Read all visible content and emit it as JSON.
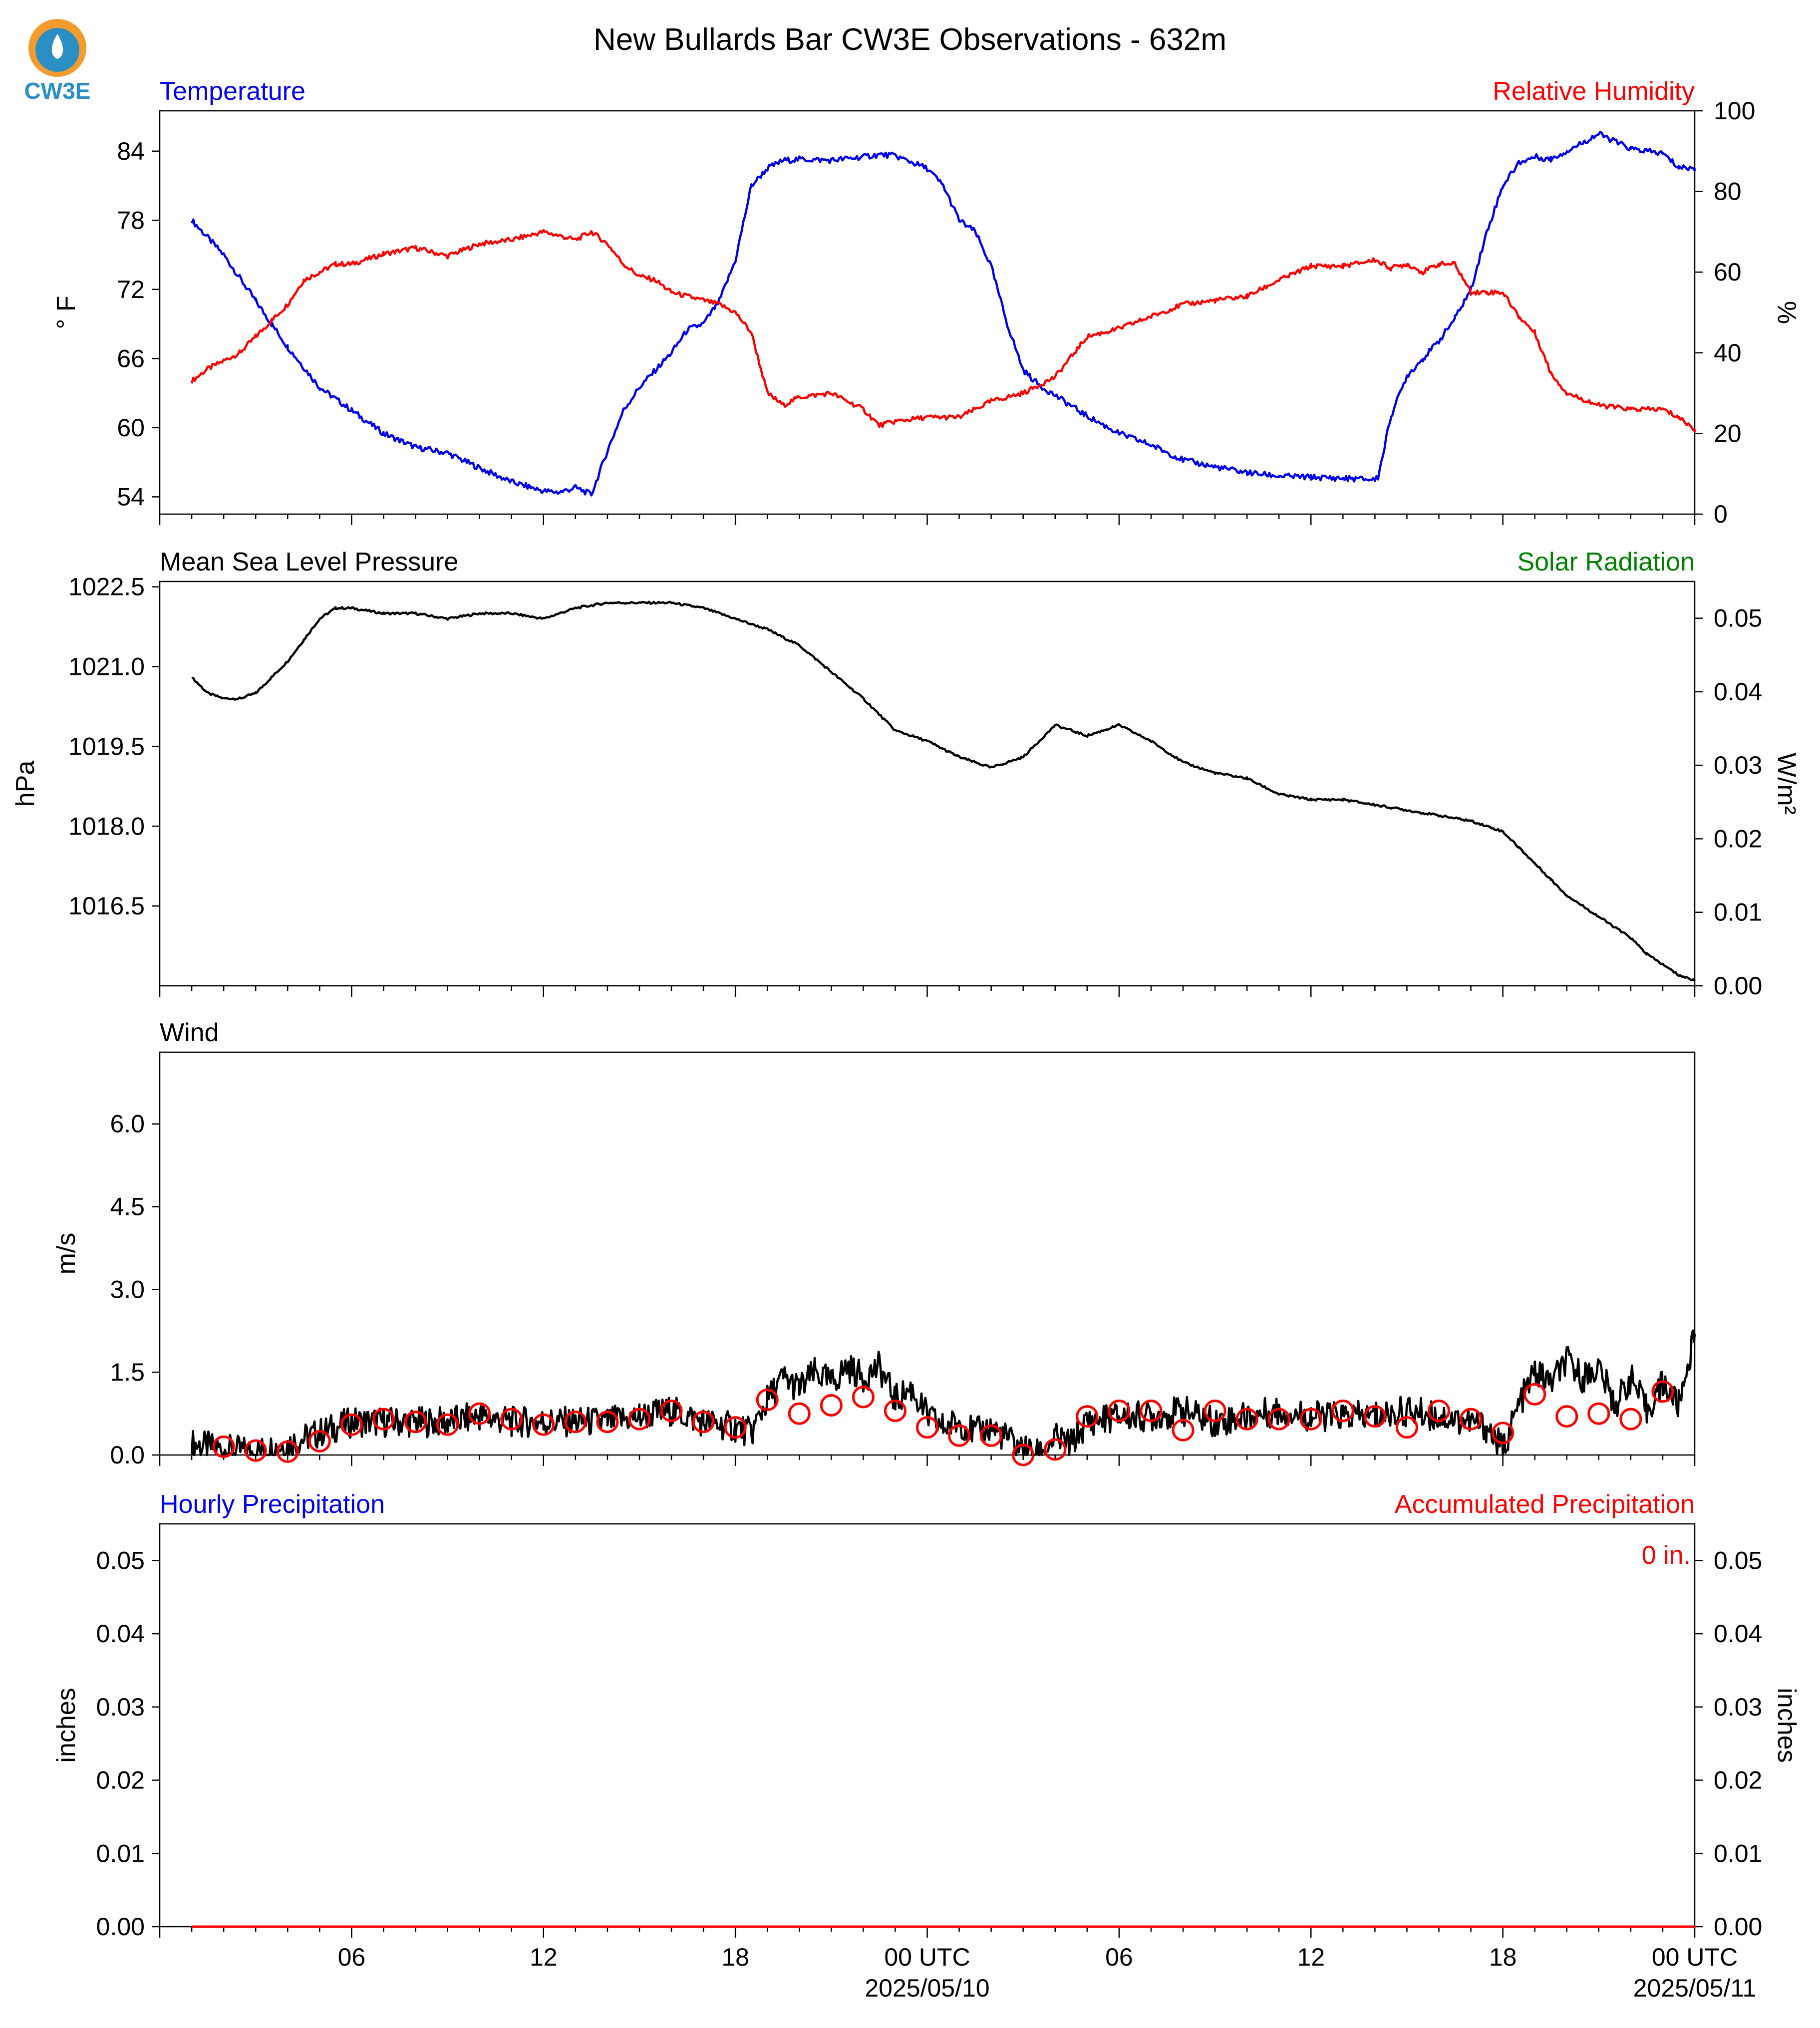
{
  "title": "New Bullards Bar CW3E Observations - 632m",
  "logo": {
    "text": "CW3E",
    "colors": {
      "sun": "#f39c2d",
      "water": "#2b8fc4"
    }
  },
  "colors": {
    "temperature": "#0000ee",
    "humidity": "#ff0000",
    "pressure": "#000000",
    "wind": "#000000",
    "gust": "#ff0000",
    "solar": "#008000",
    "hourly": "#0000ee",
    "accum": "#ff0000",
    "axis": "#000000"
  },
  "time_axis": {
    "x_unit": "hours since 2025-05-09 00 UTC",
    "tick_labels": [
      {
        "h": 6,
        "label": "06"
      },
      {
        "h": 12,
        "label": "12"
      },
      {
        "h": 18,
        "label": "18"
      },
      {
        "h": 24,
        "label": "00 UTC"
      },
      {
        "h": 30,
        "label": "06"
      },
      {
        "h": 36,
        "label": "12"
      },
      {
        "h": 42,
        "label": "18"
      },
      {
        "h": 48,
        "label": "00 UTC"
      }
    ],
    "date_labels": [
      {
        "h": 24,
        "label": "2025/05/10"
      },
      {
        "h": 48,
        "label": "2025/05/11"
      }
    ],
    "range": [
      1,
      48
    ]
  },
  "chart_data": [
    {
      "panel": "temperature_humidity",
      "type": "line",
      "left_title": "Temperature",
      "right_title": "Relative Humidity",
      "ylabel": "° F",
      "ylabel_right": "%",
      "ylim": [
        52.5,
        87.5
      ],
      "ylim_right": [
        0,
        100
      ],
      "yticks": [
        "54",
        "60",
        "66",
        "72",
        "78",
        "84"
      ],
      "yticks_right": [
        "0",
        "20",
        "40",
        "60",
        "80",
        "100"
      ],
      "series": [
        {
          "name": "Temperature",
          "axis": "left",
          "x": [
            1,
            1.5,
            2,
            3,
            3.5,
            4,
            5,
            6,
            7,
            8,
            9,
            10,
            11,
            12,
            12.5,
            13,
            13.5,
            14,
            14.5,
            15,
            16,
            16.5,
            17,
            17.5,
            18,
            18.5,
            19,
            19.5,
            20,
            21,
            22,
            22.5,
            23,
            24,
            24.5,
            25,
            25.5,
            26,
            26.5,
            27,
            27.5,
            28,
            29,
            30,
            31,
            32,
            33,
            34,
            35,
            36,
            37,
            38,
            38.1,
            38.5,
            39,
            39.5,
            40,
            40.5,
            41,
            41.5,
            42,
            42.5,
            43,
            43.5,
            44,
            45,
            46,
            46.5,
            47,
            47.5,
            48
          ],
          "values": [
            78,
            76.5,
            75,
            71,
            69,
            67,
            63.5,
            61.5,
            59.5,
            58.3,
            57.8,
            56.5,
            55.3,
            54.5,
            54.4,
            54.8,
            54.2,
            58,
            61.5,
            63.5,
            66.5,
            68.5,
            69,
            71,
            74.5,
            81,
            82.5,
            83.2,
            83.3,
            83.2,
            83.5,
            83.7,
            83.6,
            82.5,
            81,
            78,
            77,
            74,
            69,
            65,
            63.7,
            62.8,
            61,
            59.5,
            58.5,
            57.2,
            56.6,
            56.1,
            55.8,
            55.7,
            55.6,
            55.5,
            55.7,
            61,
            64.5,
            66,
            67.5,
            69.5,
            72,
            77,
            81,
            83,
            83.5,
            83.3,
            84,
            85.5,
            84.2,
            84,
            83.8,
            82.6,
            82.5
          ]
        },
        {
          "name": "Relative Humidity",
          "axis": "right",
          "x": [
            1,
            1.5,
            2,
            2.5,
            3,
            3.5,
            4,
            4.5,
            5,
            5.5,
            6,
            7,
            8,
            9,
            10,
            11,
            12,
            13,
            13.5,
            14,
            14.5,
            15,
            15.5,
            16,
            17,
            17.5,
            18,
            18.5,
            19,
            19.5,
            20,
            21,
            22,
            22.5,
            23,
            24,
            25,
            26,
            27,
            28,
            29,
            30,
            31,
            32,
            33,
            34,
            35,
            36,
            37,
            38,
            38.5,
            39,
            39.5,
            40,
            40.5,
            41,
            41.5,
            42,
            42.5,
            43,
            43.5,
            44,
            45,
            46,
            47,
            47.5,
            48
          ],
          "values": [
            33,
            36,
            38,
            40,
            44,
            48,
            52,
            58,
            60,
            62,
            62,
            64.5,
            66,
            64,
            67,
            68,
            70,
            68,
            70,
            67,
            62,
            59,
            58,
            55,
            53,
            52,
            50,
            45,
            30,
            27,
            29,
            30,
            26,
            22,
            23,
            24,
            24,
            28,
            30,
            34,
            44,
            46,
            49,
            52,
            53,
            54,
            58,
            61.5,
            61.5,
            63,
            61,
            62,
            60,
            62,
            62,
            55,
            55,
            55,
            49,
            45,
            35,
            30,
            27,
            26,
            26,
            24,
            21
          ]
        }
      ]
    },
    {
      "panel": "pressure_solar",
      "type": "line",
      "left_title": "Mean Sea Level Pressure",
      "right_title": "Solar Radiation",
      "ylabel": "hPa",
      "ylabel_right": "W/m²",
      "ylim": [
        1015.0,
        1022.6
      ],
      "ylim_right": [
        0,
        0.055
      ],
      "yticks": [
        "1016.5",
        "1018.0",
        "1019.5",
        "1021.0",
        "1022.5"
      ],
      "yticks_right": [
        "0.00",
        "0.01",
        "0.02",
        "0.03",
        "0.04",
        "0.05"
      ],
      "series": [
        {
          "name": "Mean Sea Level Pressure",
          "axis": "left",
          "x": [
            1,
            1.5,
            2,
            2.5,
            3,
            3.5,
            4,
            4.5,
            5,
            5.5,
            6,
            7,
            8,
            9,
            10,
            11,
            12,
            13,
            14,
            15,
            16,
            17,
            17.5,
            18,
            18.5,
            19,
            20,
            21,
            22,
            22.5,
            23,
            24,
            25,
            26,
            27,
            27.5,
            28,
            29,
            30,
            31,
            32,
            33,
            34,
            35,
            36,
            37,
            38,
            39,
            40,
            41,
            42,
            42.5,
            43,
            43.5,
            44,
            45,
            46,
            46.5,
            47,
            47.5,
            48
          ],
          "values": [
            1020.8,
            1020.5,
            1020.4,
            1020.4,
            1020.5,
            1020.8,
            1021.1,
            1021.5,
            1021.9,
            1022.1,
            1022.1,
            1022.0,
            1022.0,
            1021.9,
            1022.0,
            1022.0,
            1021.9,
            1022.1,
            1022.2,
            1022.2,
            1022.2,
            1022.1,
            1022.0,
            1021.9,
            1021.8,
            1021.7,
            1021.4,
            1020.9,
            1020.4,
            1020.1,
            1019.8,
            1019.6,
            1019.3,
            1019.1,
            1019.3,
            1019.6,
            1019.9,
            1019.7,
            1019.9,
            1019.6,
            1019.2,
            1019.0,
            1018.9,
            1018.6,
            1018.5,
            1018.5,
            1018.4,
            1018.3,
            1018.2,
            1018.1,
            1017.9,
            1017.6,
            1017.3,
            1017.0,
            1016.7,
            1016.3,
            1015.9,
            1015.6,
            1015.4,
            1015.2,
            1015.1
          ]
        }
      ]
    },
    {
      "panel": "wind",
      "type": "line",
      "left_title": "Wind",
      "ylabel": "m/s",
      "ylim": [
        0,
        7.3
      ],
      "yticks": [
        "0.0",
        "1.5",
        "3.0",
        "4.5",
        "6.0"
      ],
      "series": [
        {
          "name": "Wind speed",
          "axis": "left",
          "x": [
            1,
            2,
            3,
            4,
            5,
            6,
            7,
            8,
            9,
            10,
            11,
            12,
            13,
            14,
            15,
            16,
            17,
            18,
            18.5,
            19,
            19.5,
            20,
            20.5,
            21,
            21.5,
            22,
            22.5,
            23,
            23.5,
            24,
            24.5,
            25,
            25.5,
            26,
            26.5,
            27,
            27.5,
            28,
            28.5,
            29,
            30,
            31,
            32,
            33,
            34,
            35,
            36,
            37,
            38,
            39,
            40,
            41,
            41.5,
            42,
            42.5,
            43,
            43.5,
            44,
            44.5,
            45,
            45.5,
            46,
            46.5,
            47,
            47.5,
            48
          ],
          "values": [
            0.2,
            0.1,
            0.05,
            0.2,
            0.4,
            0.6,
            0.6,
            0.6,
            0.6,
            0.7,
            0.6,
            0.6,
            0.6,
            0.6,
            0.7,
            0.8,
            0.6,
            0.5,
            0.4,
            1.0,
            1.4,
            1.2,
            1.5,
            1.3,
            1.6,
            1.4,
            1.6,
            1.0,
            1.2,
            0.7,
            0.5,
            0.6,
            0.4,
            0.5,
            0.3,
            0.1,
            0.0,
            0.3,
            0.2,
            0.6,
            0.7,
            0.7,
            0.8,
            0.6,
            0.7,
            0.8,
            0.7,
            0.7,
            0.7,
            0.8,
            0.7,
            0.6,
            0.5,
            0.1,
            0.9,
            1.5,
            1.3,
            1.7,
            1.4,
            1.6,
            0.9,
            1.4,
            0.8,
            1.3,
            0.9,
            2.2
          ]
        },
        {
          "name": "Gust",
          "axis": "left",
          "marker": "circle",
          "x": [
            2,
            3,
            4,
            5,
            6,
            7,
            8,
            9,
            10,
            11,
            12,
            13,
            14,
            15,
            16,
            17,
            18,
            19,
            20,
            21,
            22,
            23,
            24,
            25,
            26,
            27,
            28,
            29,
            30,
            31,
            32,
            33,
            34,
            35,
            36,
            37,
            38,
            39,
            40,
            41,
            42,
            43,
            44,
            45,
            46,
            47
          ],
          "values": [
            0.15,
            0.08,
            0.06,
            0.25,
            0.55,
            0.65,
            0.6,
            0.55,
            0.75,
            0.65,
            0.55,
            0.6,
            0.6,
            0.65,
            0.8,
            0.6,
            0.5,
            1.0,
            0.75,
            0.9,
            1.05,
            0.8,
            0.5,
            0.35,
            0.35,
            0.0,
            0.1,
            0.7,
            0.8,
            0.8,
            0.45,
            0.8,
            0.65,
            0.65,
            0.65,
            0.8,
            0.7,
            0.5,
            0.8,
            0.65,
            0.4,
            1.1,
            0.7,
            0.75,
            0.65,
            1.15
          ]
        }
      ]
    },
    {
      "panel": "precipitation",
      "type": "line",
      "left_title": "Hourly Precipitation",
      "right_title": "Accumulated Precipitation",
      "annotation": "0 in.",
      "ylabel": "inches",
      "ylabel_right": "inches",
      "ylim": [
        0,
        0.055
      ],
      "ylim_right": [
        0,
        0.055
      ],
      "yticks": [
        "0.00",
        "0.01",
        "0.02",
        "0.03",
        "0.04",
        "0.05"
      ],
      "yticks_right": [
        "0.00",
        "0.01",
        "0.02",
        "0.03",
        "0.04",
        "0.05"
      ],
      "series": [
        {
          "name": "Accumulated Precipitation",
          "axis": "right",
          "x": [
            1,
            48
          ],
          "values": [
            0,
            0
          ]
        }
      ]
    }
  ]
}
